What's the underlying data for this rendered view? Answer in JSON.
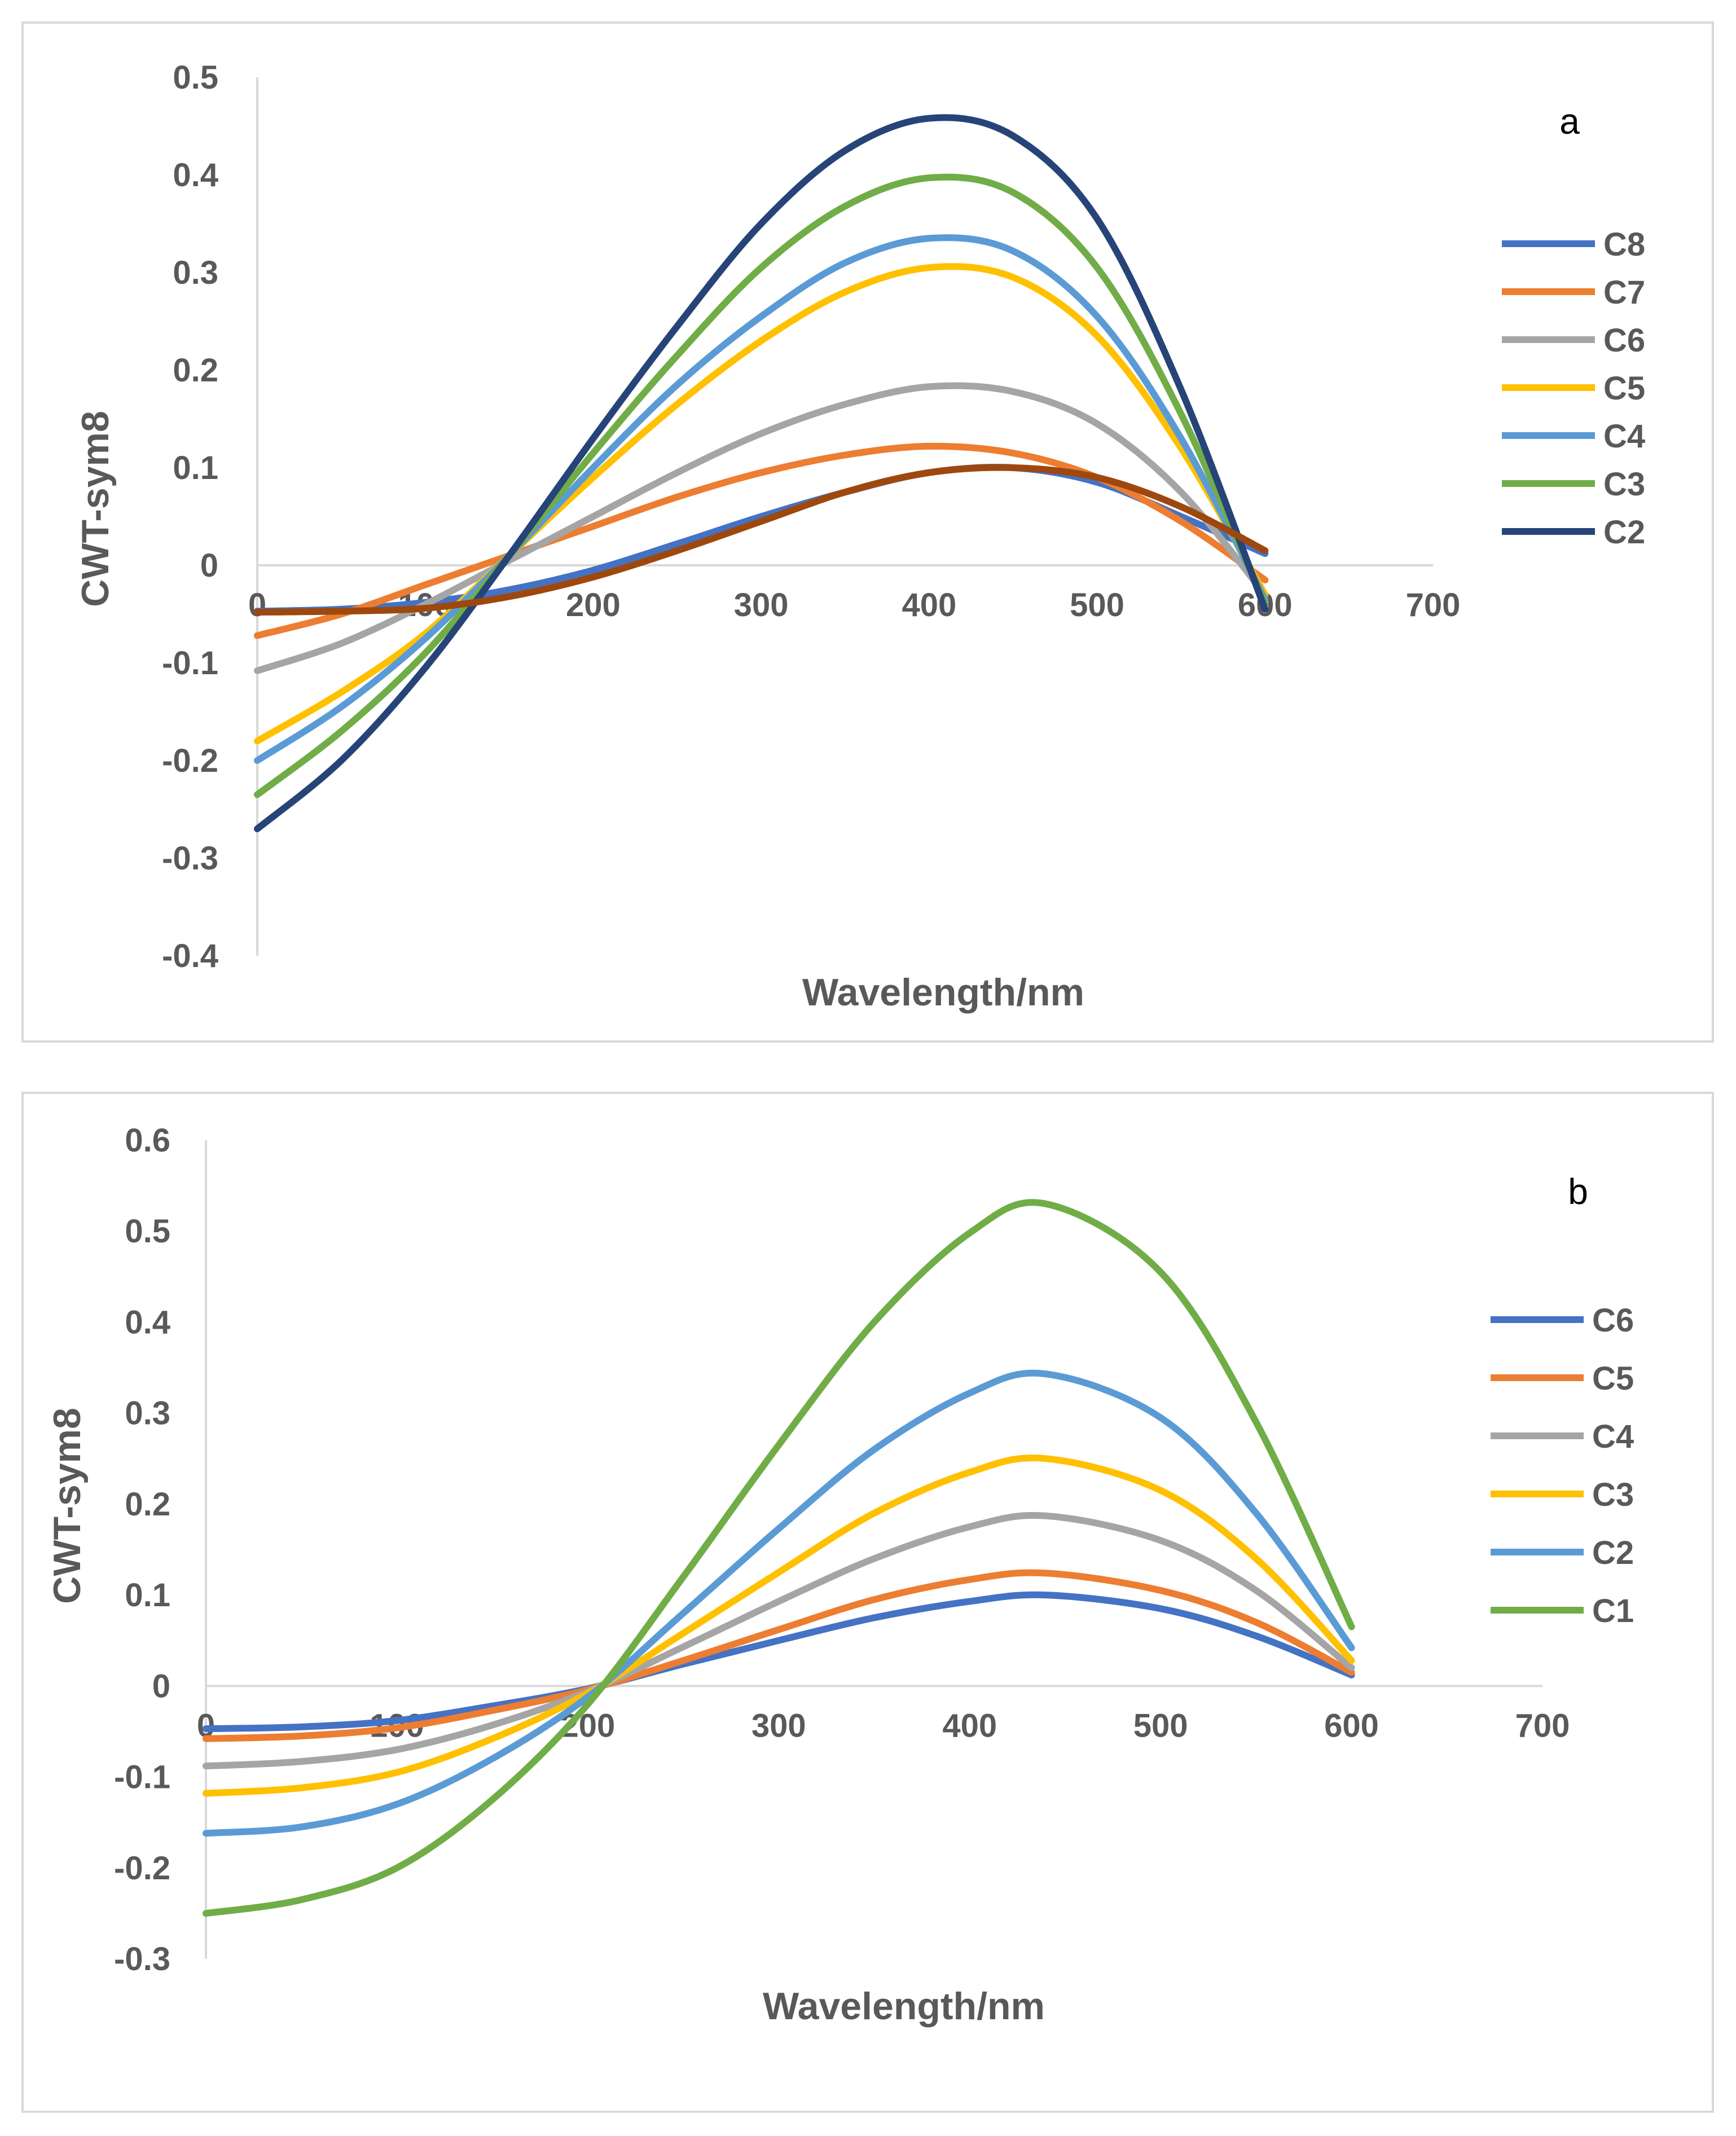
{
  "chart_data": [
    {
      "type": "line",
      "panel_label": "a",
      "xlabel": "Wavelength/nm",
      "ylabel": "CWT-sym8",
      "xlim": [
        0,
        700
      ],
      "ylim": [
        -0.4,
        0.5
      ],
      "x_ticks": [
        "0",
        "100",
        "200",
        "300",
        "400",
        "500",
        "600",
        "700"
      ],
      "y_ticks": [
        "-0.4",
        "-0.3",
        "-0.2",
        "-0.1",
        "0",
        "0.1",
        "0.2",
        "0.3",
        "0.4",
        "0.5"
      ],
      "legend_position": "right",
      "series": [
        {
          "name": "C8",
          "color": "#4472C4",
          "x": [
            0,
            50,
            100,
            150,
            200,
            250,
            300,
            350,
            400,
            450,
            500,
            550,
            600
          ],
          "y": [
            -0.047,
            -0.045,
            -0.038,
            -0.025,
            -0.005,
            0.022,
            0.05,
            0.075,
            0.095,
            0.1,
            0.085,
            0.05,
            0.012
          ]
        },
        {
          "name": "C7",
          "color": "#ED7D31",
          "x": [
            0,
            50,
            100,
            150,
            200,
            250,
            300,
            350,
            400,
            450,
            500,
            550,
            600
          ],
          "y": [
            -0.072,
            -0.05,
            -0.02,
            0.01,
            0.04,
            0.07,
            0.095,
            0.113,
            0.122,
            0.115,
            0.09,
            0.045,
            -0.015
          ]
        },
        {
          "name": "C6",
          "color": "#A5A5A5",
          "x": [
            0,
            50,
            100,
            150,
            200,
            250,
            300,
            350,
            400,
            450,
            500,
            550,
            600
          ],
          "y": [
            -0.108,
            -0.08,
            -0.04,
            0.005,
            0.05,
            0.095,
            0.135,
            0.165,
            0.183,
            0.178,
            0.145,
            0.075,
            -0.03
          ]
        },
        {
          "name": "C5",
          "color": "#FFC000",
          "x": [
            0,
            50,
            100,
            150,
            200,
            250,
            300,
            350,
            400,
            450,
            500,
            550,
            600
          ],
          "y": [
            -0.18,
            -0.13,
            -0.07,
            0.01,
            0.09,
            0.165,
            0.23,
            0.28,
            0.305,
            0.295,
            0.235,
            0.12,
            -0.03
          ]
        },
        {
          "name": "C4",
          "color": "#5B9BD5",
          "x": [
            0,
            50,
            100,
            150,
            200,
            250,
            300,
            350,
            400,
            450,
            500,
            550,
            600
          ],
          "y": [
            -0.2,
            -0.145,
            -0.075,
            0.01,
            0.1,
            0.185,
            0.255,
            0.31,
            0.335,
            0.322,
            0.255,
            0.13,
            -0.035
          ]
        },
        {
          "name": "C3",
          "color": "#70AD47",
          "x": [
            0,
            50,
            100,
            150,
            200,
            250,
            300,
            350,
            400,
            450,
            500,
            550,
            600
          ],
          "y": [
            -0.235,
            -0.17,
            -0.09,
            0.01,
            0.115,
            0.215,
            0.305,
            0.368,
            0.397,
            0.382,
            0.305,
            0.155,
            -0.04
          ]
        },
        {
          "name": "C2",
          "color": "#264478",
          "x": [
            0,
            50,
            100,
            150,
            200,
            250,
            300,
            350,
            400,
            450,
            500,
            550,
            600
          ],
          "y": [
            -0.27,
            -0.2,
            -0.105,
            0.01,
            0.13,
            0.245,
            0.35,
            0.425,
            0.458,
            0.44,
            0.355,
            0.18,
            -0.045
          ]
        },
        {
          "name": "",
          "color": "#9E480E",
          "x": [
            0,
            50,
            100,
            150,
            200,
            250,
            300,
            350,
            400,
            450,
            500,
            550,
            600
          ],
          "y": [
            -0.048,
            -0.047,
            -0.044,
            -0.032,
            -0.012,
            0.015,
            0.045,
            0.075,
            0.095,
            0.1,
            0.09,
            0.06,
            0.015
          ]
        }
      ]
    },
    {
      "type": "line",
      "panel_label": "b",
      "xlabel": "Wavelength/nm",
      "ylabel": "CWT-sym8",
      "xlim": [
        0,
        700
      ],
      "ylim": [
        -0.3,
        0.6
      ],
      "x_ticks": [
        "0",
        "100",
        "200",
        "300",
        "400",
        "500",
        "600",
        "700"
      ],
      "y_ticks": [
        "-0.3",
        "-0.2",
        "-0.1",
        "0",
        "0.1",
        "0.2",
        "0.3",
        "0.4",
        "0.5",
        "0.6"
      ],
      "legend_position": "right",
      "series": [
        {
          "name": "C6",
          "color": "#4472C4",
          "x": [
            0,
            50,
            100,
            150,
            200,
            250,
            300,
            350,
            400,
            440,
            500,
            550,
            600
          ],
          "y": [
            -0.047,
            -0.045,
            -0.038,
            -0.022,
            -0.003,
            0.024,
            0.05,
            0.075,
            0.093,
            0.1,
            0.085,
            0.055,
            0.012
          ]
        },
        {
          "name": "C5",
          "color": "#ED7D31",
          "x": [
            0,
            50,
            100,
            150,
            200,
            250,
            300,
            350,
            400,
            440,
            500,
            550,
            600
          ],
          "y": [
            -0.058,
            -0.055,
            -0.046,
            -0.027,
            -0.004,
            0.028,
            0.062,
            0.095,
            0.117,
            0.124,
            0.105,
            0.07,
            0.015
          ]
        },
        {
          "name": "C4",
          "color": "#A5A5A5",
          "x": [
            0,
            50,
            100,
            150,
            200,
            250,
            300,
            350,
            400,
            440,
            500,
            550,
            600
          ],
          "y": [
            -0.088,
            -0.083,
            -0.07,
            -0.043,
            -0.006,
            0.043,
            0.093,
            0.14,
            0.175,
            0.187,
            0.16,
            0.105,
            0.02
          ]
        },
        {
          "name": "C3",
          "color": "#FFC000",
          "x": [
            0,
            50,
            100,
            150,
            200,
            250,
            300,
            350,
            400,
            440,
            500,
            550,
            600
          ],
          "y": [
            -0.118,
            -0.112,
            -0.095,
            -0.058,
            -0.008,
            0.058,
            0.125,
            0.19,
            0.235,
            0.25,
            0.215,
            0.14,
            0.028
          ]
        },
        {
          "name": "C2",
          "color": "#5B9BD5",
          "x": [
            0,
            50,
            100,
            150,
            200,
            250,
            300,
            350,
            400,
            440,
            500,
            550,
            600
          ],
          "y": [
            -0.162,
            -0.155,
            -0.13,
            -0.08,
            -0.012,
            0.08,
            0.173,
            0.26,
            0.322,
            0.343,
            0.295,
            0.19,
            0.042
          ]
        },
        {
          "name": "C1",
          "color": "#70AD47",
          "x": [
            0,
            50,
            100,
            150,
            200,
            250,
            300,
            350,
            400,
            440,
            500,
            550,
            600
          ],
          "y": [
            -0.25,
            -0.235,
            -0.2,
            -0.125,
            -0.02,
            0.12,
            0.265,
            0.4,
            0.498,
            0.53,
            0.455,
            0.29,
            0.065
          ]
        }
      ]
    }
  ]
}
